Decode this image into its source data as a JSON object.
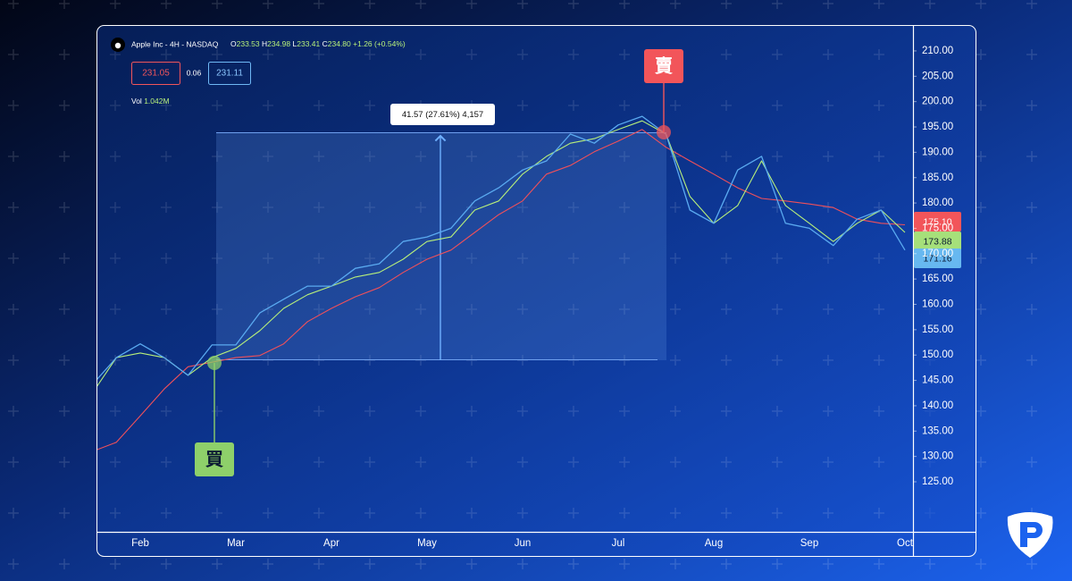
{
  "chart_data": {
    "type": "line",
    "header": {
      "symbol": "Apple Inc - 4H - NASDAQ",
      "ohlc": [
        {
          "key": "O",
          "value": "233.53"
        },
        {
          "key": "H",
          "value": "234.98"
        },
        {
          "key": "L",
          "value": "233.41"
        },
        {
          "key": "C",
          "value": "234.80"
        }
      ],
      "change": "+1.26 (+0.54%)",
      "bid": "231.05",
      "spread": "0.06",
      "ask": "231.11",
      "volume_key": "Vol",
      "volume": "1.042M"
    },
    "annotations": {
      "measure": "41.57 (27.61%) 4,157",
      "buy": "買",
      "sell": "賣"
    },
    "price_tags": [
      {
        "label": "175.10",
        "color": "#f2555a"
      },
      {
        "label": "173.88",
        "color": "#a6e07a"
      },
      {
        "label": "171.16",
        "color": "#67b8f0"
      }
    ],
    "categories": [
      null,
      null,
      "Feb",
      null,
      null,
      null,
      "Mar",
      null,
      null,
      null,
      "Apr",
      null,
      null,
      null,
      "May",
      null,
      null,
      null,
      "Jun",
      null,
      null,
      null,
      "Jul",
      null,
      null,
      null,
      "Aug",
      null,
      null,
      null,
      "Sep",
      null,
      null,
      null,
      "Oct"
    ],
    "series": [
      {
        "color": "#f0505a",
        "values": [
          131,
          132.8,
          138,
          143.3,
          147.7,
          148.6,
          149.5,
          149.9,
          152.2,
          156.6,
          159.2,
          161.5,
          163.3,
          166.3,
          168.9,
          170.7,
          174.2,
          177.7,
          180.4,
          185.7,
          187.4,
          190.1,
          192.2,
          194.5,
          191,
          188.3,
          185.7,
          183,
          180.9,
          180.4,
          179.8,
          179.1,
          176.8,
          176,
          175.7
        ]
      },
      {
        "color": "#b8f07a",
        "values": [
          142.5,
          149.5,
          150.4,
          149.5,
          146,
          149.5,
          151.3,
          154.8,
          159.2,
          161.9,
          163.6,
          165.4,
          166.3,
          168.9,
          172.4,
          173.3,
          178.6,
          180.4,
          185.7,
          189.2,
          191.8,
          192.7,
          194.5,
          196.2,
          193.6,
          181.3,
          176,
          179.5,
          188.3,
          179.5,
          176,
          172.4,
          176,
          178.6,
          174.2
        ]
      },
      {
        "color": "#5aaaf0",
        "values": [
          144.2,
          149.5,
          152.2,
          149.5,
          146,
          152,
          152,
          158.3,
          161,
          163.6,
          163.6,
          167.1,
          168,
          172.4,
          173.3,
          175,
          180.4,
          183,
          186.5,
          188.3,
          193.6,
          191.8,
          195.4,
          197.1,
          193.6,
          178.6,
          176,
          186.5,
          189.2,
          176,
          175,
          171.6,
          176.8,
          178.6,
          170.7
        ]
      }
    ],
    "ylim": [
      115,
      215
    ],
    "yticks": [
      {
        "value": 125,
        "label": "125.00"
      },
      {
        "value": 130,
        "label": "130.00"
      },
      {
        "value": 135,
        "label": "135.00"
      },
      {
        "value": 140,
        "label": "140.00"
      },
      {
        "value": 145,
        "label": "145.00"
      },
      {
        "value": 150,
        "label": "150.00"
      },
      {
        "value": 155,
        "label": "155.00"
      },
      {
        "value": 160,
        "label": "160.00"
      },
      {
        "value": 165,
        "label": "165.00"
      },
      {
        "value": 170,
        "label": "170.00"
      },
      {
        "value": 175,
        "label": "175.00"
      },
      {
        "value": 180,
        "label": "180.00"
      },
      {
        "value": 185,
        "label": "185.00"
      },
      {
        "value": 190,
        "label": "190.00"
      },
      {
        "value": 195,
        "label": "195.00"
      },
      {
        "value": 200,
        "label": "200.00"
      },
      {
        "value": 205,
        "label": "205.00"
      },
      {
        "value": 210,
        "label": "210.00"
      }
    ],
    "grid": false
  }
}
